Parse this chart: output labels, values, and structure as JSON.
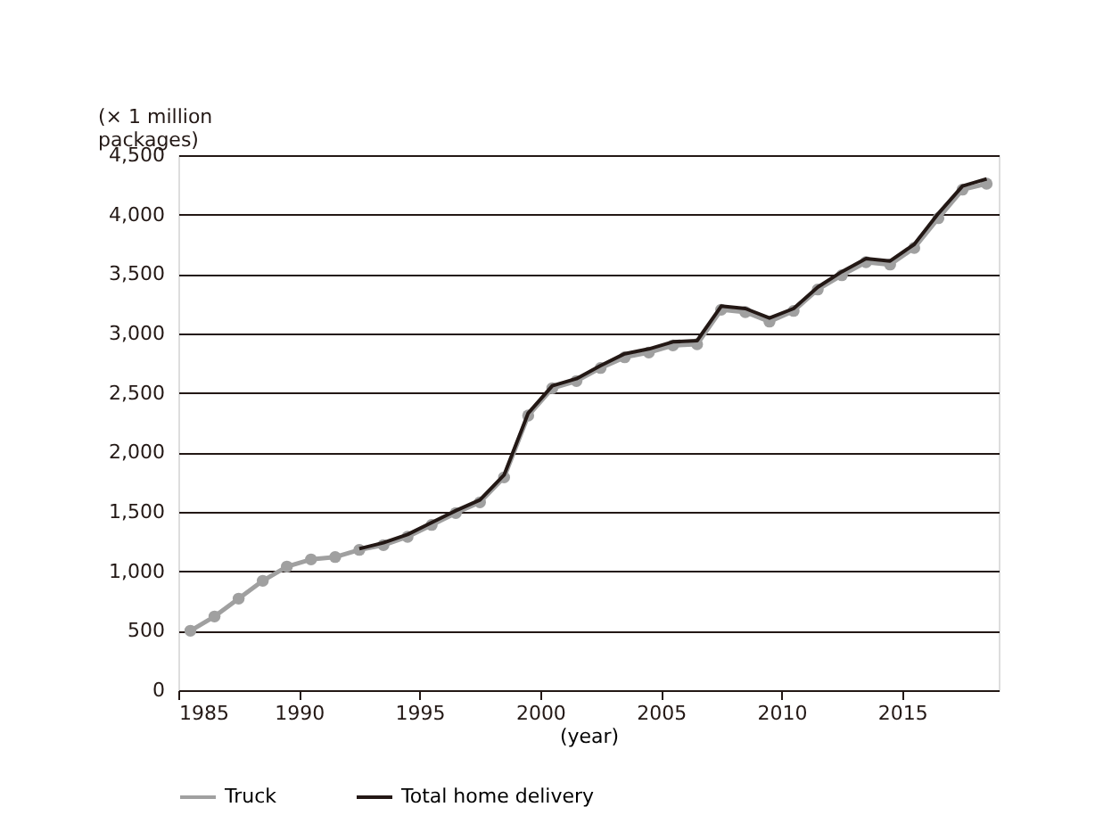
{
  "chart_data": {
    "type": "line",
    "ylabel": "(× 1 million\npackages)",
    "xlabel": "(year)",
    "xlim": [
      1985,
      2019
    ],
    "xticks": [
      1985,
      1990,
      1995,
      2000,
      2005,
      2010,
      2015
    ],
    "ylim": [
      0,
      4500
    ],
    "yticks": [
      0,
      500,
      {
        "value": 1000,
        "label": "1,000"
      },
      {
        "value": 1500,
        "label": "1,500"
      },
      {
        "value": 2000,
        "label": "2,000"
      },
      {
        "value": 2500,
        "label": "2,500"
      },
      {
        "value": 3000,
        "label": "3,000"
      },
      {
        "value": 3500,
        "label": "3,500"
      },
      {
        "value": 4000,
        "label": "4,000"
      },
      {
        "value": 4500,
        "label": "4,500"
      }
    ],
    "grid": "y",
    "legend": "bottom",
    "line_style": "solid",
    "series": [
      {
        "name": "Truck",
        "color": "#a0a0a0",
        "marker": "circle",
        "x": [
          1985.5,
          1986.5,
          1987.5,
          1988.5,
          1989.5,
          1990.5,
          1991.5,
          1992.5,
          1993.5,
          1994.5,
          1995.5,
          1996.5,
          1997.5,
          1998.5,
          1999.5,
          2000.5,
          2001.5,
          2002.5,
          2003.5,
          2004.5,
          2005.5,
          2006.5,
          2007.5,
          2008.5,
          2009.5,
          2010.5,
          2011.5,
          2012.5,
          2013.5,
          2014.5,
          2015.5,
          2016.5,
          2017.5,
          2018.5
        ],
        "values": [
          500,
          620,
          770,
          920,
          1040,
          1100,
          1120,
          1180,
          1220,
          1290,
          1390,
          1490,
          1580,
          1790,
          2310,
          2540,
          2600,
          2710,
          2800,
          2840,
          2900,
          2910,
          3200,
          3180,
          3100,
          3190,
          3370,
          3490,
          3600,
          3580,
          3720,
          3970,
          4210,
          4260
        ]
      },
      {
        "name": "Total home delivery",
        "color": "#231815",
        "marker": "none",
        "x": [
          1992.5,
          1993.5,
          1994.5,
          1995.5,
          1996.5,
          1997.5,
          1998.5,
          1999.5,
          2000.5,
          2001.5,
          2002.5,
          2003.5,
          2004.5,
          2005.5,
          2006.5,
          2007.5,
          2008.5,
          2009.5,
          2010.5,
          2011.5,
          2012.5,
          2013.5,
          2014.5,
          2015.5,
          2016.5,
          2017.5,
          2018.5
        ],
        "values": [
          1190,
          1240,
          1310,
          1410,
          1510,
          1600,
          1810,
          2330,
          2560,
          2620,
          2730,
          2830,
          2870,
          2930,
          2940,
          3230,
          3210,
          3130,
          3210,
          3390,
          3520,
          3630,
          3610,
          3750,
          4010,
          4240,
          4300
        ]
      }
    ]
  }
}
